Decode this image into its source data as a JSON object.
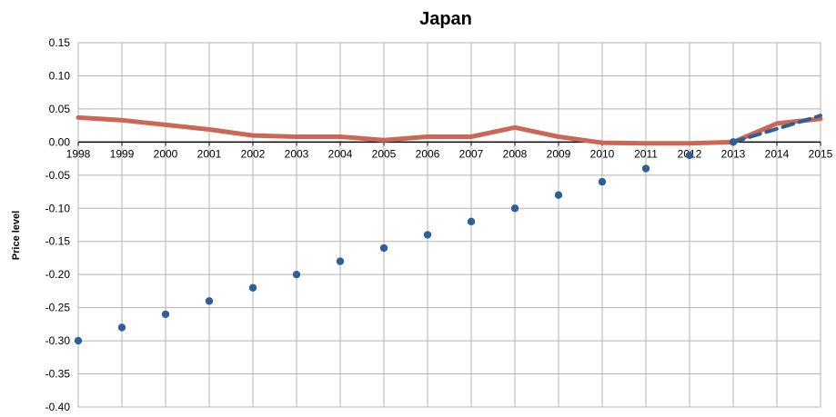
{
  "chart_data": {
    "type": "line",
    "title": "Japan",
    "xlabel": "",
    "ylabel": "Price level",
    "ylim": [
      -0.4,
      0.15
    ],
    "grid": true,
    "legend": "none",
    "categories": [
      "1998",
      "1999",
      "2000",
      "2001",
      "2002",
      "2003",
      "2004",
      "2005",
      "2006",
      "2007",
      "2008",
      "2009",
      "2010",
      "2011",
      "2012",
      "2013",
      "2014",
      "2015"
    ],
    "y_ticks": [
      "0.15",
      "0.10",
      "0.05",
      "0.00",
      "-0.05",
      "-0.10",
      "-0.15",
      "-0.20",
      "-0.25",
      "-0.30",
      "-0.35",
      "-0.40"
    ],
    "series": [
      {
        "style": "solid-line",
        "color": "#cc6655",
        "values": [
          0.037,
          0.033,
          0.026,
          0.019,
          0.01,
          0.008,
          0.008,
          0.003,
          0.008,
          0.008,
          0.022,
          0.008,
          -0.001,
          -0.002,
          -0.002,
          0.0,
          0.028,
          0.035
        ]
      },
      {
        "style": "dots",
        "color": "#2e5f95",
        "values": [
          -0.3,
          -0.28,
          -0.26,
          -0.24,
          -0.22,
          -0.2,
          -0.18,
          -0.16,
          -0.14,
          -0.12,
          -0.1,
          -0.08,
          -0.06,
          -0.04,
          -0.02,
          0.0,
          null,
          null
        ]
      },
      {
        "style": "dashed-line",
        "color": "#2e5f95",
        "values": [
          null,
          null,
          null,
          null,
          null,
          null,
          null,
          null,
          null,
          null,
          null,
          null,
          null,
          null,
          null,
          0.0,
          0.02,
          0.04
        ]
      }
    ]
  }
}
